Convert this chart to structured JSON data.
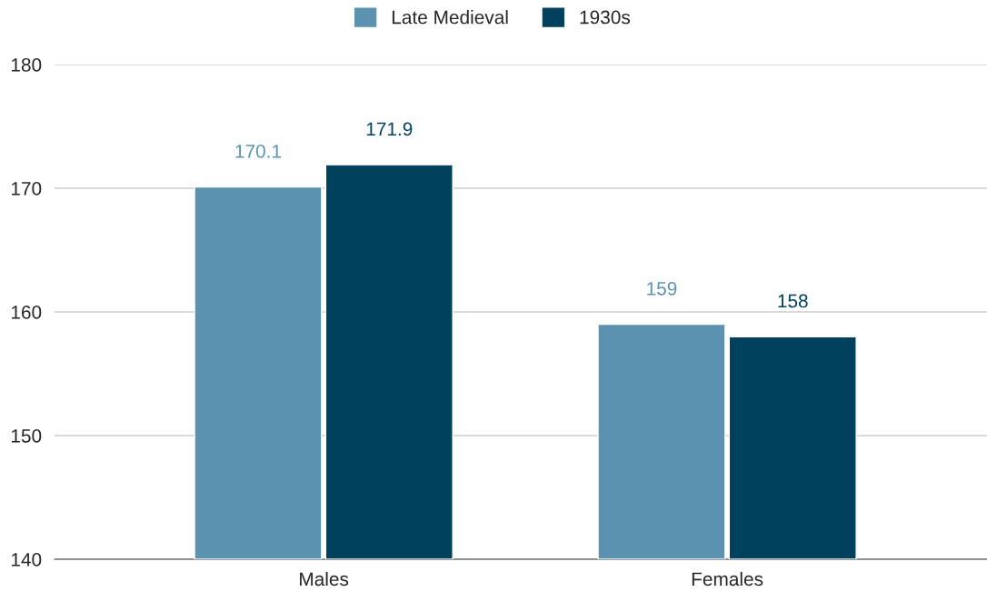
{
  "chart_data": {
    "type": "bar",
    "categories": [
      "Males",
      "Females"
    ],
    "series": [
      {
        "name": "Late Medieval",
        "color": "#5a92af",
        "values": [
          170.1,
          159
        ]
      },
      {
        "name": "1930s",
        "color": "#00425e",
        "values": [
          171.9,
          158
        ]
      }
    ],
    "ylim": [
      140,
      180
    ],
    "yticks": [
      140,
      150,
      160,
      170,
      180
    ],
    "grid": "y",
    "legend": "top",
    "data_labels": true
  }
}
